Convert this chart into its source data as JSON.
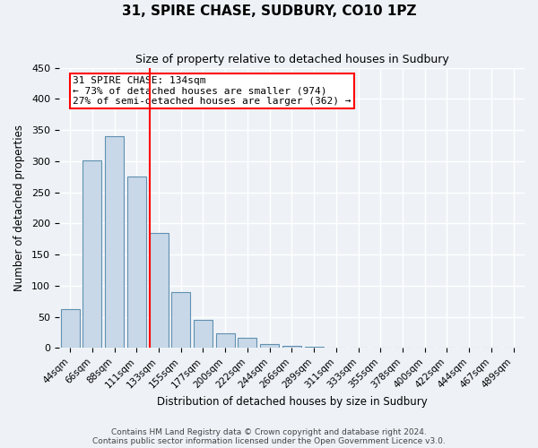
{
  "title": "31, SPIRE CHASE, SUDBURY, CO10 1PZ",
  "subtitle": "Size of property relative to detached houses in Sudbury",
  "xlabel": "Distribution of detached houses by size in Sudbury",
  "ylabel": "Number of detached properties",
  "bar_labels": [
    "44sqm",
    "66sqm",
    "88sqm",
    "111sqm",
    "133sqm",
    "155sqm",
    "177sqm",
    "200sqm",
    "222sqm",
    "244sqm",
    "266sqm",
    "289sqm",
    "311sqm",
    "333sqm",
    "355sqm",
    "378sqm",
    "400sqm",
    "422sqm",
    "444sqm",
    "467sqm",
    "489sqm"
  ],
  "bar_values": [
    62,
    301,
    340,
    275,
    185,
    90,
    45,
    24,
    16,
    7,
    4,
    2,
    1,
    1,
    1,
    0,
    0,
    0,
    1,
    0,
    1
  ],
  "bar_color": "#c8d8e8",
  "bar_edge_color": "#6090b0",
  "vline_bar_index": 4,
  "annotation_title": "31 SPIRE CHASE: 134sqm",
  "annotation_line1": "← 73% of detached houses are smaller (974)",
  "annotation_line2": "27% of semi-detached houses are larger (362) →",
  "annotation_box_color": "white",
  "annotation_box_edge_color": "red",
  "vline_color": "red",
  "ylim": [
    0,
    450
  ],
  "yticks": [
    0,
    50,
    100,
    150,
    200,
    250,
    300,
    350,
    400,
    450
  ],
  "footer1": "Contains HM Land Registry data © Crown copyright and database right 2024.",
  "footer2": "Contains public sector information licensed under the Open Government Licence v3.0.",
  "bg_color": "#eef2f7",
  "grid_color": "white"
}
